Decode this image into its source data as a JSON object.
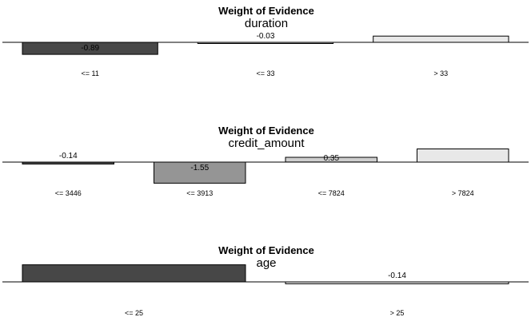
{
  "chart_data": [
    {
      "type": "bar",
      "title": "Weight of Evidence",
      "subtitle": "duration",
      "categories": [
        "<= 11",
        "<= 33",
        "> 33"
      ],
      "values": [
        -0.89,
        -0.03,
        0.46
      ],
      "value_labels": [
        "-0.89",
        "-0.03",
        ""
      ],
      "colors": [
        "#474747",
        "#bdbdbd",
        "#e8e8e8"
      ],
      "grid": false,
      "legend": "none"
    },
    {
      "type": "bar",
      "title": "Weight of Evidence",
      "subtitle": "credit_amount",
      "categories": [
        "<= 3446",
        "<= 3913",
        "<= 7824",
        "> 7824"
      ],
      "values": [
        -0.14,
        -1.55,
        0.35,
        0.97
      ],
      "value_labels": [
        "-0.14",
        "-1.55",
        "0.35",
        ""
      ],
      "colors": [
        "#474747",
        "#959595",
        "#cfcfcf",
        "#e8e8e8"
      ],
      "grid": false,
      "legend": "none"
    },
    {
      "type": "bar",
      "title": "Weight of Evidence",
      "subtitle": "age",
      "categories": [
        "<= 25",
        "> 25"
      ],
      "values": [
        1.26,
        -0.14
      ],
      "value_labels": [
        "",
        "-0.14"
      ],
      "colors": [
        "#474747",
        "#e8e8e8"
      ],
      "grid": false,
      "legend": "none"
    }
  ]
}
